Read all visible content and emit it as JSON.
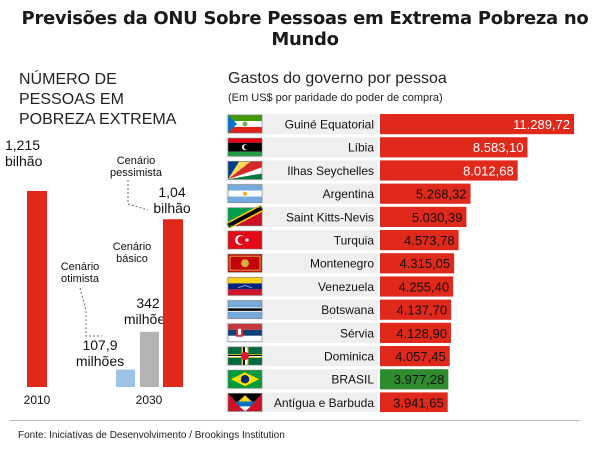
{
  "title": "Previsões da ONU Sobre Pessoas em Extrema Pobreza no Mundo",
  "source": "Fonte: Iniciativas de Desenvolvimento / Brookings Institution",
  "poverty_title": [
    "NÚMERO DE",
    "PESSOAS EM",
    "POBREZA EXTREMA"
  ],
  "spending_title": "Gastos do governo por pessoa",
  "spending_subtitle": "(Em US$ por paridade do poder de compra)",
  "colors": {
    "red": "#e0281b",
    "blue": "#9cc3e6",
    "gray": "#b3b3b3",
    "green": "#2e8b2e"
  },
  "chart_data": [
    {
      "type": "bar",
      "title": "NÚMERO DE PESSOAS EM POBREZA EXTREMA",
      "unit": "bilhão",
      "x_labels": [
        "2010",
        "2030"
      ],
      "bars": [
        {
          "year": "2010",
          "scenario": "",
          "value": 1.215,
          "value_label": [
            "1,215",
            "bilhão"
          ],
          "color": "#e0281b"
        },
        {
          "year": "2030",
          "scenario": "Cenário otimista",
          "scenario_lines": [
            "Cenário",
            "otimista"
          ],
          "value": 0.1079,
          "value_label": [
            "107,9",
            "milhões"
          ],
          "color": "#9cc3e6"
        },
        {
          "year": "2030",
          "scenario": "Cenário básico",
          "scenario_lines": [
            "Cenário",
            "básico"
          ],
          "value": 0.342,
          "value_label": [
            "342",
            "milhões"
          ],
          "color": "#b3b3b3"
        },
        {
          "year": "2030",
          "scenario": "Cenário pessimista",
          "scenario_lines": [
            "Cenário",
            "pessimista"
          ],
          "value": 1.04,
          "value_label": [
            "1,04",
            "bilhão"
          ],
          "color": "#e0281b"
        }
      ]
    },
    {
      "type": "bar",
      "orientation": "horizontal",
      "title": "Gastos do governo por pessoa",
      "subtitle": "(Em US$ por paridade do poder de compra)",
      "categories": [
        "Guiné Equatorial",
        "Líbia",
        "Ilhas Seychelles",
        "Argentina",
        "Saint Kitts-Nevis",
        "Turquia",
        "Montenegro",
        "Venezuela",
        "Botswana",
        "Sérvia",
        "Dominica",
        "BRASIL",
        "Antígua e Barbuda"
      ],
      "values": [
        11289.72,
        8583.1,
        8012.68,
        5268.32,
        5030.39,
        4573.78,
        4315.05,
        4255.4,
        4137.7,
        4128.9,
        4057.45,
        3977.28,
        3941.65
      ],
      "value_labels": [
        "11.289,72",
        "8.583,10",
        "8.012,68",
        "5.268,32",
        "5.030,39",
        "4.573,78",
        "4.315,05",
        "4.255,40",
        "4.137,70",
        "4.128,90",
        "4.057,45",
        "3.977,28",
        "3.941,65"
      ],
      "flags": [
        "equatorial-guinea-flag",
        "libya-flag",
        "seychelles-flag",
        "argentina-flag",
        "saint-kitts-nevis-flag",
        "turkey-flag",
        "montenegro-flag",
        "venezuela-flag",
        "botswana-flag",
        "serbia-flag",
        "dominica-flag",
        "brazil-flag",
        "antigua-barbuda-flag"
      ],
      "highlight": "BRASIL",
      "xlim": [
        0,
        11500
      ]
    }
  ]
}
